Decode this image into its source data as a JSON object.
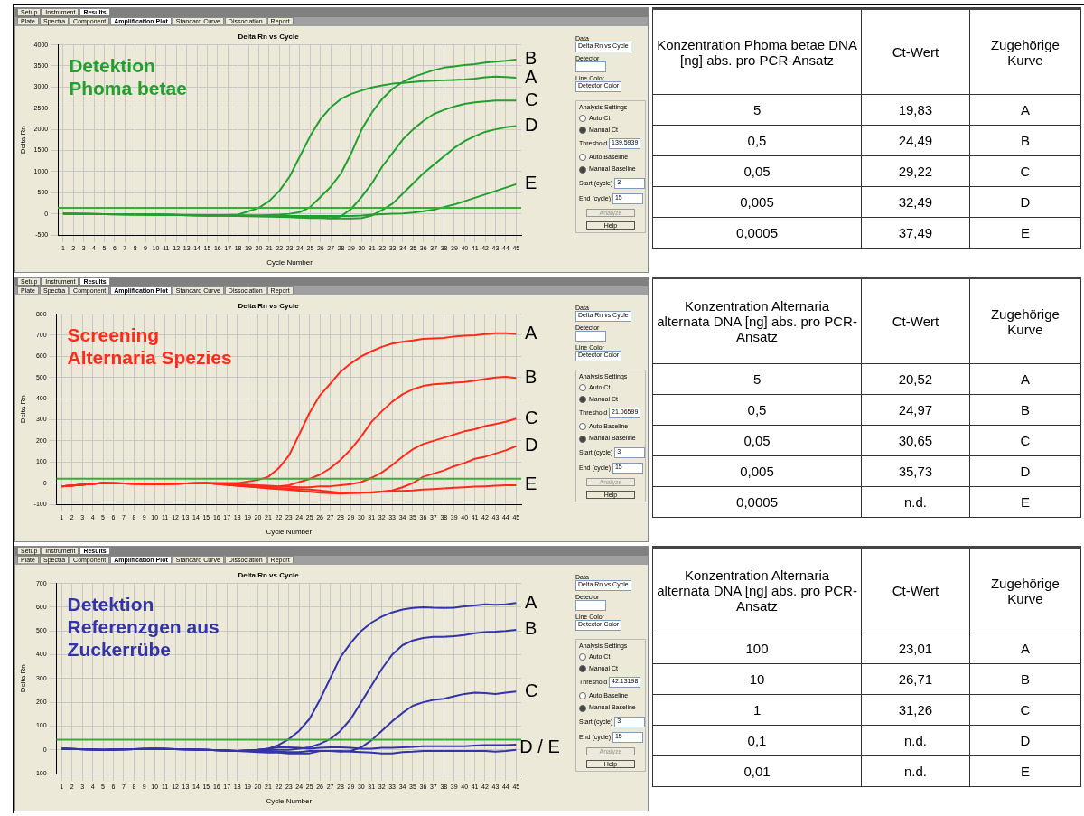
{
  "chart_data": [
    {
      "type": "line",
      "title": "Delta Rn vs Cycle",
      "xlabel": "Cycle Number",
      "ylabel": "Delta Rn",
      "grid": true,
      "xlim": [
        0.5,
        45.5
      ],
      "xticks": [
        1,
        2,
        3,
        4,
        5,
        6,
        7,
        8,
        9,
        10,
        11,
        12,
        13,
        14,
        15,
        16,
        17,
        18,
        19,
        20,
        21,
        22,
        23,
        24,
        25,
        26,
        27,
        28,
        29,
        30,
        31,
        32,
        33,
        34,
        35,
        36,
        37,
        38,
        39,
        40,
        41,
        42,
        43,
        44,
        45
      ],
      "ylim": [
        -500,
        4000
      ],
      "yticks": [
        -500,
        0,
        500,
        1000,
        1500,
        2000,
        2500,
        3000,
        3500,
        4000
      ],
      "x": [
        1,
        5,
        10,
        15,
        18,
        20,
        21,
        22,
        23,
        24,
        25,
        26,
        27,
        28,
        29,
        30,
        31,
        32,
        33,
        34,
        35,
        36,
        37,
        38,
        39,
        40,
        41,
        42,
        43,
        44,
        45
      ],
      "series": [
        {
          "name": "A",
          "color": "#22a02e",
          "values": [
            0,
            -10,
            -20,
            -40,
            -20,
            140,
            300,
            540,
            880,
            1360,
            1840,
            2240,
            2520,
            2720,
            2840,
            2920,
            2990,
            3040,
            3080,
            3100,
            3120,
            3140,
            3150,
            3160,
            3170,
            3180,
            3200,
            3230,
            3250,
            3240,
            3220
          ]
        },
        {
          "name": "B",
          "color": "#22a02e",
          "values": [
            0,
            -10,
            -20,
            -40,
            -40,
            -40,
            -30,
            -20,
            0,
            40,
            160,
            400,
            640,
            960,
            1440,
            2000,
            2400,
            2720,
            2960,
            3120,
            3240,
            3320,
            3400,
            3460,
            3490,
            3520,
            3540,
            3580,
            3600,
            3620,
            3650
          ]
        },
        {
          "name": "C",
          "color": "#22a02e",
          "values": [
            0,
            -10,
            -20,
            -40,
            -40,
            -50,
            -60,
            -60,
            -70,
            -80,
            -80,
            -90,
            -100,
            -60,
            120,
            400,
            720,
            1120,
            1440,
            1760,
            2000,
            2200,
            2360,
            2460,
            2540,
            2600,
            2640,
            2660,
            2680,
            2680,
            2680
          ]
        },
        {
          "name": "D",
          "color": "#22a02e",
          "values": [
            0,
            -10,
            -20,
            -40,
            -50,
            -60,
            -60,
            -70,
            -80,
            -90,
            -100,
            -100,
            -110,
            -110,
            -110,
            -100,
            -40,
            90,
            240,
            480,
            720,
            960,
            1160,
            1360,
            1560,
            1720,
            1840,
            1940,
            2000,
            2050,
            2080
          ]
        },
        {
          "name": "E",
          "color": "#22a02e",
          "values": [
            0,
            -10,
            -20,
            -30,
            -40,
            -40,
            -40,
            -40,
            -50,
            -50,
            -50,
            -50,
            -50,
            -50,
            -50,
            -40,
            -20,
            -10,
            0,
            10,
            30,
            60,
            100,
            160,
            220,
            300,
            380,
            460,
            540,
            620,
            700
          ]
        }
      ],
      "ref_lines": [
        {
          "axis": "y",
          "value": 139.5939,
          "color": "#33b033"
        }
      ],
      "annotations": [
        "Detektion\nPhoma betae",
        "Setup",
        "Instrument",
        "Results",
        "Plate",
        "Spectra",
        "Component",
        "Amplification Plot",
        "Standard Curve",
        "Dissociation",
        "Report",
        "Data",
        "Delta Rn vs Cycle",
        "Detector",
        "Line Color",
        "Detector Color",
        "Analysis Settings",
        "Auto Ct",
        "Manual Ct",
        "Threshold",
        "Auto Baseline",
        "Manual Baseline",
        "Start (cycle)",
        "3",
        "End (cycle)",
        "15",
        "Analyze",
        "Help",
        "139.5939"
      ]
    },
    {
      "type": "other",
      "annotations": [
        "Konzentration Phoma betae DNA [ng] abs. pro PCR-Ansatz",
        "Ct-Wert",
        "Zugehörige Kurve",
        "5",
        "19,83",
        "A",
        "0,5",
        "24,49",
        "B",
        "0,05",
        "29,22",
        "C",
        "0,005",
        "32,49",
        "D",
        "0,0005",
        "37,49",
        "E"
      ]
    },
    {
      "type": "line",
      "title": "Delta Rn vs Cycle",
      "xlabel": "Cycle Number",
      "ylabel": "Delta Rn",
      "grid": true,
      "xlim": [
        0.5,
        45.5
      ],
      "xticks": [
        1,
        2,
        3,
        4,
        5,
        6,
        7,
        8,
        9,
        10,
        11,
        12,
        13,
        14,
        15,
        16,
        17,
        18,
        19,
        20,
        21,
        22,
        23,
        24,
        25,
        26,
        27,
        28,
        29,
        30,
        31,
        32,
        33,
        34,
        35,
        36,
        37,
        38,
        39,
        40,
        41,
        42,
        43,
        44,
        45
      ],
      "ylim": [
        -100,
        800
      ],
      "yticks": [
        -100,
        0,
        100,
        200,
        300,
        400,
        500,
        600,
        700,
        800
      ],
      "x": [
        1,
        5,
        10,
        15,
        18,
        20,
        21,
        22,
        23,
        24,
        25,
        26,
        27,
        28,
        29,
        30,
        31,
        32,
        33,
        34,
        35,
        36,
        37,
        38,
        39,
        40,
        41,
        42,
        43,
        44,
        45
      ],
      "series": [
        {
          "name": "A",
          "color": "#ff2a1a",
          "values": [
            -15,
            0,
            -5,
            0,
            0,
            15,
            30,
            70,
            130,
            230,
            333,
            415,
            470,
            527,
            567,
            600,
            624,
            645,
            660,
            669,
            675,
            683,
            685,
            687,
            694,
            698,
            700,
            705,
            710,
            710,
            706
          ]
        },
        {
          "name": "B",
          "color": "#ff2a1a",
          "values": [
            -15,
            0,
            -5,
            0,
            -5,
            -10,
            -12,
            -15,
            -10,
            5,
            20,
            40,
            70,
            110,
            160,
            220,
            290,
            340,
            385,
            420,
            444,
            460,
            468,
            471,
            475,
            479,
            485,
            492,
            500,
            503,
            498
          ]
        },
        {
          "name": "C",
          "color": "#ff2a1a",
          "values": [
            -15,
            0,
            -5,
            0,
            -10,
            -15,
            -15,
            -18,
            -18,
            -20,
            -20,
            -15,
            -15,
            -10,
            -5,
            5,
            25,
            50,
            85,
            125,
            160,
            185,
            200,
            215,
            230,
            245,
            255,
            270,
            280,
            290,
            305
          ]
        },
        {
          "name": "D",
          "color": "#ff2a1a",
          "values": [
            -15,
            0,
            -5,
            0,
            -12,
            -20,
            -22,
            -25,
            -27,
            -28,
            -30,
            -35,
            -40,
            -45,
            -45,
            -45,
            -45,
            -40,
            -35,
            -20,
            0,
            30,
            45,
            60,
            80,
            95,
            115,
            125,
            140,
            155,
            175
          ]
        },
        {
          "name": "E",
          "color": "#ff2a1a",
          "values": [
            -15,
            0,
            -5,
            0,
            -12,
            -20,
            -25,
            -28,
            -32,
            -36,
            -40,
            -45,
            -48,
            -50,
            -48,
            -45,
            -43,
            -40,
            -38,
            -37,
            -35,
            -30,
            -28,
            -25,
            -22,
            -20,
            -17,
            -15,
            -12,
            -10,
            -10
          ]
        }
      ],
      "ref_lines": [
        {
          "axis": "y",
          "value": 21.06599,
          "color": "#33b033"
        }
      ],
      "annotations": [
        "Screening\nAlternaria Spezies",
        "Setup",
        "Instrument",
        "Results",
        "Plate",
        "Spectra",
        "Component",
        "Amplification Plot",
        "Standard Curve",
        "Dissociation",
        "Report",
        "Data",
        "Delta Rn vs Cycle",
        "Detector",
        "Line Color",
        "Detector Color",
        "Analysis Settings",
        "Auto Ct",
        "Manual Ct",
        "Threshold",
        "Auto Baseline",
        "Manual Baseline",
        "Start (cycle)",
        "3",
        "End (cycle)",
        "15",
        "Analyze",
        "Help",
        "21.06599"
      ]
    },
    {
      "type": "other",
      "annotations": [
        "Konzentration Alternaria alternata DNA [ng] abs. pro PCR-Ansatz",
        "Ct-Wert",
        "Zugehörige Kurve",
        "5",
        "20,52",
        "A",
        "0,5",
        "24,97",
        "B",
        "0,05",
        "30,65",
        "C",
        "0,005",
        "35,73",
        "D",
        "0,0005",
        "n.d.",
        "E"
      ]
    },
    {
      "type": "line",
      "title": "Delta Rn vs Cycle",
      "xlabel": "Cycle Number",
      "ylabel": "Delta Rn",
      "grid": true,
      "xlim": [
        0.5,
        45.5
      ],
      "xticks": [
        1,
        2,
        3,
        4,
        5,
        6,
        7,
        8,
        9,
        10,
        11,
        12,
        13,
        14,
        15,
        16,
        17,
        18,
        19,
        20,
        21,
        22,
        23,
        24,
        25,
        26,
        27,
        28,
        29,
        30,
        31,
        32,
        33,
        34,
        35,
        36,
        37,
        38,
        39,
        40,
        41,
        42,
        43,
        44,
        45
      ],
      "ylim": [
        -100,
        700
      ],
      "yticks": [
        -100,
        0,
        100,
        200,
        300,
        400,
        500,
        600,
        700
      ],
      "x": [
        1,
        5,
        10,
        15,
        18,
        20,
        21,
        22,
        23,
        24,
        25,
        26,
        27,
        28,
        29,
        30,
        31,
        32,
        33,
        34,
        35,
        36,
        37,
        38,
        39,
        40,
        41,
        42,
        43,
        44,
        45
      ],
      "series": [
        {
          "name": "A",
          "color": "#3333aa",
          "values": [
            5,
            0,
            5,
            0,
            -5,
            0,
            5,
            20,
            45,
            80,
            130,
            210,
            300,
            390,
            450,
            500,
            535,
            560,
            578,
            590,
            597,
            600,
            598,
            597,
            598,
            603,
            607,
            612,
            610,
            612,
            618
          ]
        },
        {
          "name": "B",
          "color": "#3333aa",
          "values": [
            5,
            0,
            5,
            0,
            -5,
            0,
            0,
            0,
            0,
            5,
            10,
            25,
            45,
            80,
            130,
            200,
            270,
            340,
            400,
            440,
            460,
            470,
            475,
            475,
            478,
            483,
            490,
            495,
            497,
            500,
            505
          ]
        },
        {
          "name": "C",
          "color": "#3333aa",
          "values": [
            5,
            0,
            5,
            0,
            -5,
            -5,
            -5,
            -8,
            -10,
            -10,
            -5,
            -5,
            -5,
            -8,
            -5,
            10,
            40,
            80,
            120,
            155,
            185,
            200,
            210,
            215,
            225,
            235,
            240,
            238,
            235,
            240,
            245
          ]
        },
        {
          "color": "#3333aa",
          "values": [
            5,
            0,
            5,
            0,
            -5,
            0,
            5,
            10,
            10,
            8,
            5,
            8,
            10,
            10,
            8,
            5,
            5,
            8,
            8,
            10,
            12,
            15,
            15,
            15,
            15,
            15,
            18,
            20,
            20,
            20,
            22
          ]
        },
        {
          "color": "#3333aa",
          "values": [
            5,
            0,
            5,
            0,
            -5,
            -10,
            -12,
            -12,
            -15,
            -15,
            -15,
            -5,
            -5,
            -5,
            -8,
            -10,
            -12,
            -15,
            -15,
            -10,
            -8,
            -5,
            -5,
            -5,
            -5,
            -5,
            -5,
            -5,
            -8,
            -5,
            0
          ]
        }
      ],
      "ref_lines": [
        {
          "axis": "y",
          "value": 42.13198,
          "color": "#33b033"
        }
      ],
      "annotations": [
        "Detektion\nReferenzgen aus\nZuckerrübe",
        "Setup",
        "Instrument",
        "Results",
        "Plate",
        "Spectra",
        "Component",
        "Amplification Plot",
        "Standard Curve",
        "Dissociation",
        "Report",
        "Data",
        "Delta Rn vs Cycle",
        "Detector",
        "Line Color",
        "Detector Color",
        "Analysis Settings",
        "Auto Ct",
        "Manual Ct",
        "Threshold",
        "Auto Baseline",
        "Manual Baseline",
        "Start (cycle)",
        "3",
        "End (cycle)",
        "15",
        "Analyze",
        "Help",
        "42.13198",
        {
          "text": "D / E",
          "x": 45,
          "y": 10
        }
      ]
    },
    {
      "type": "other",
      "annotations": [
        "Konzentration Alternaria alternata DNA [ng] abs. pro PCR-Ansatz",
        "Ct-Wert",
        "Zugehörige Kurve",
        "100",
        "23,01",
        "A",
        "10",
        "26,71",
        "B",
        "1",
        "31,26",
        "C",
        "0,1",
        "n.d.",
        "D",
        "0,01",
        "n.d.",
        "E"
      ]
    }
  ]
}
